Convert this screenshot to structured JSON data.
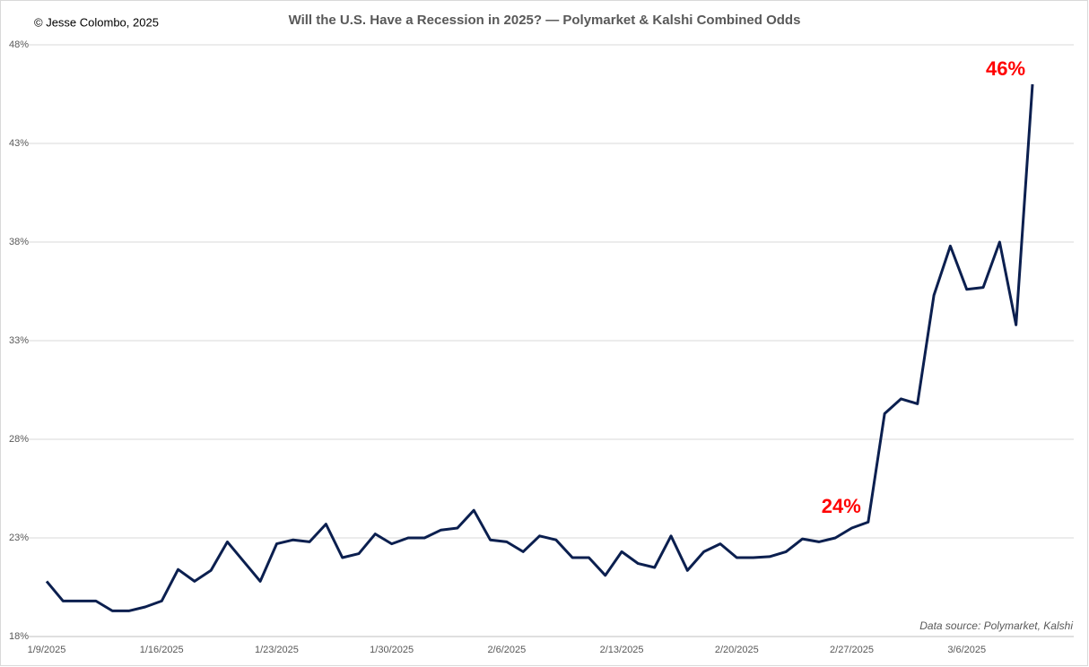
{
  "chart_data": {
    "type": "line",
    "title": "Will the U.S. Have a Recession in 2025? — Polymarket & Kalshi Combined Odds",
    "copyright": "© Jesse Colombo, 2025",
    "source": "Data source: Polymarket, Kalshi",
    "categories": [
      "1/9/2025",
      null,
      null,
      null,
      null,
      null,
      null,
      "1/16/2025",
      null,
      null,
      null,
      null,
      null,
      null,
      "1/23/2025",
      null,
      null,
      null,
      null,
      null,
      null,
      "1/30/2025",
      null,
      null,
      null,
      null,
      null,
      null,
      "2/6/2025",
      null,
      null,
      null,
      null,
      null,
      null,
      "2/13/2025",
      null,
      null,
      null,
      null,
      null,
      null,
      "2/20/2025",
      null,
      null,
      null,
      null,
      null,
      null,
      "2/27/2025",
      null,
      null,
      null,
      null,
      null,
      null,
      "3/6/2025",
      null,
      null,
      null,
      null
    ],
    "series": [
      {
        "name": "Combined Odds",
        "color": "#0b1f4f",
        "values": [
          20.8,
          19.8,
          19.8,
          19.8,
          19.3,
          19.3,
          19.5,
          19.8,
          21.4,
          20.8,
          21.35,
          22.8,
          21.8,
          20.8,
          22.7,
          22.9,
          22.8,
          23.7,
          22.0,
          22.2,
          23.2,
          22.7,
          23.0,
          23.0,
          23.4,
          23.5,
          24.4,
          22.9,
          22.8,
          22.3,
          23.1,
          22.9,
          22.0,
          22.0,
          21.1,
          22.3,
          21.7,
          21.5,
          23.1,
          21.35,
          22.3,
          22.7,
          22.0,
          22.0,
          22.05,
          22.3,
          22.95,
          22.8,
          23.0,
          23.5,
          23.8,
          29.3,
          30.05,
          29.8,
          35.3,
          37.8,
          35.6,
          35.7,
          38.0,
          33.8,
          46.0
        ],
        "value_labels": [
          null,
          null,
          null,
          null,
          null,
          null,
          null,
          null,
          null,
          null,
          null,
          null,
          null,
          null,
          null,
          null,
          null,
          null,
          null,
          null,
          null,
          null,
          null,
          null,
          null,
          null,
          null,
          null,
          null,
          null,
          null,
          null,
          null,
          null,
          null,
          null,
          null,
          null,
          null,
          null,
          null,
          null,
          null,
          null,
          null,
          null,
          null,
          null,
          null,
          null,
          "24%",
          null,
          null,
          null,
          null,
          null,
          null,
          null,
          null,
          null,
          "46%"
        ]
      }
    ],
    "ylim": [
      18,
      48
    ],
    "yticks": [
      {
        "value": 18,
        "label": "18%"
      },
      {
        "value": 23,
        "label": "23%"
      },
      {
        "value": 28,
        "label": "28%"
      },
      {
        "value": 33,
        "label": "33%"
      },
      {
        "value": 38,
        "label": "38%"
      },
      {
        "value": 43,
        "label": "43%"
      },
      {
        "value": 48,
        "label": "48%"
      }
    ],
    "grid": true
  }
}
